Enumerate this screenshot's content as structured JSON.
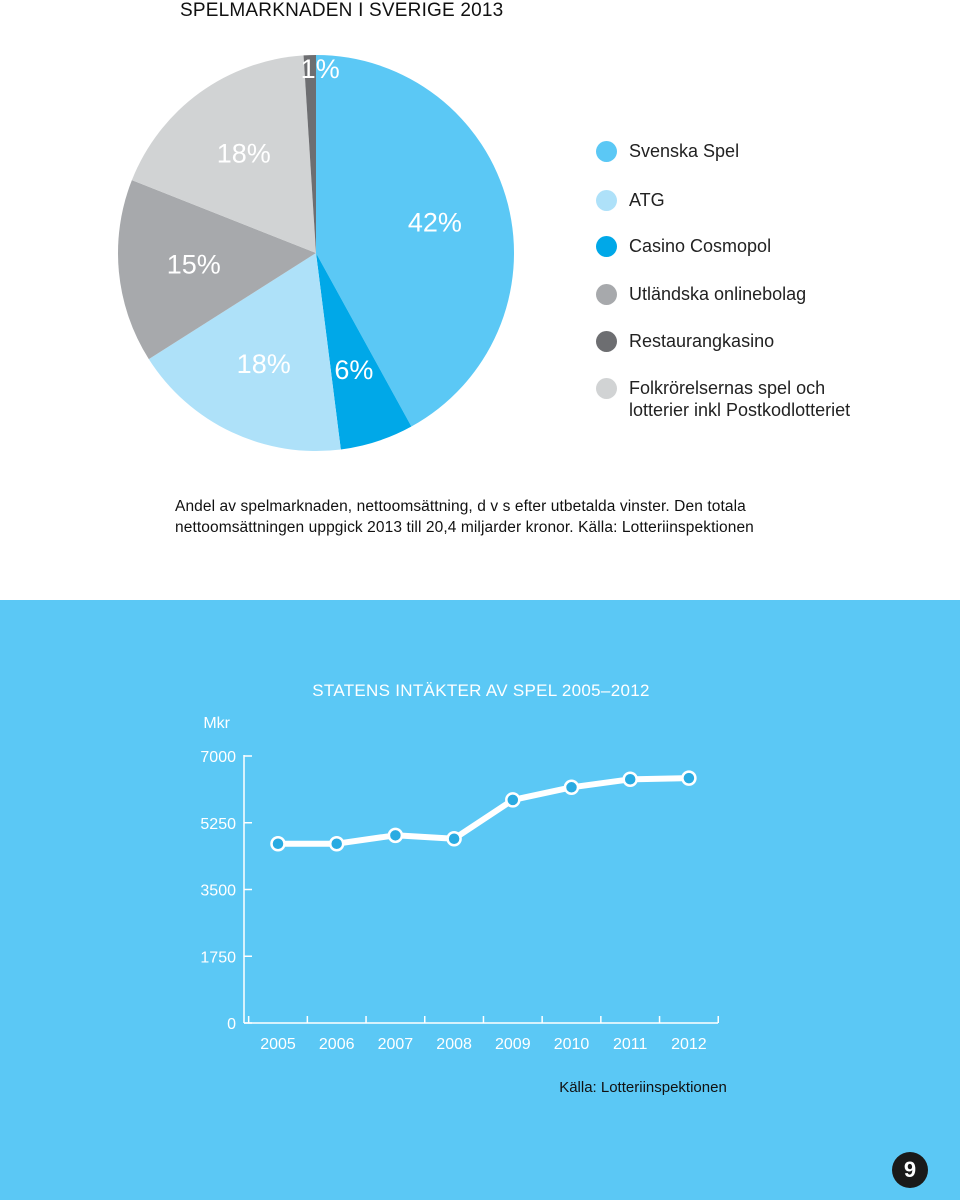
{
  "page": {
    "title": "SPELMARKNADEN I SVERIGE 2013",
    "caption": "Andel av spelmarknaden, nettoomsättning, d v s efter utbetalda vinster. Den totala nettoomsättningen uppgick 2013 till 20,4 miljarder kronor. Källa: Lotteriinspektionen",
    "page_number": "9"
  },
  "chart_data": [
    {
      "type": "pie",
      "title": "",
      "slices": [
        {
          "name": "Svenska Spel",
          "value": 42,
          "label": "42%",
          "color": "#5bc8f5"
        },
        {
          "name": "Casino Cosmopol",
          "value": 6,
          "label": "6%",
          "color": "#00a8e8"
        },
        {
          "name": "ATG",
          "value": 18,
          "label": "18%",
          "color": "#aee1f9"
        },
        {
          "name": "Utländska onlinebolag",
          "value": 15,
          "label": "15%",
          "color": "#a7a9ac"
        },
        {
          "name": "Folkrörelsernas spel och lotterier inkl Postkodlotteriet",
          "value": 18,
          "label": "18%",
          "color": "#d1d3d4"
        },
        {
          "name": "Restaurangkasino",
          "value": 1,
          "label": "1%",
          "color": "#6d6e71"
        }
      ],
      "legend": [
        {
          "label": "Svenska Spel",
          "color": "#5bc8f5"
        },
        {
          "label": "ATG",
          "color": "#aee1f9"
        },
        {
          "label": "Casino Cosmopol",
          "color": "#00a8e8"
        },
        {
          "label": "Utländska onlinebolag",
          "color": "#a7a9ac"
        },
        {
          "label": "Restaurangkasino",
          "color": "#6d6e71"
        },
        {
          "label": "Folkrörelsernas spel och\nlotterier inkl Postkodlotteriet",
          "color": "#d1d3d4"
        }
      ],
      "legend_placement": "right"
    },
    {
      "type": "line",
      "title": "STATENS INTÄKTER AV SPEL 2005–2012",
      "ylabel": "Mkr",
      "xlabel": "",
      "x": [
        "2005",
        "2006",
        "2007",
        "2008",
        "2009",
        "2010",
        "2011",
        "2012"
      ],
      "series": [
        {
          "values": [
            4700,
            4700,
            4920,
            4830,
            5850,
            6180,
            6390,
            6420
          ]
        }
      ],
      "ylim": [
        0,
        7000
      ],
      "yticks": [
        "7000",
        "5250",
        "3500",
        "1750",
        "0"
      ],
      "ytick_values": [
        7000,
        5250,
        3500,
        1750,
        0
      ],
      "grid": false,
      "source": "Källa: Lotteriinspektionen",
      "line_color": "#ffffff",
      "marker_color": "#29abe2",
      "background": "#5bc8f5"
    }
  ]
}
